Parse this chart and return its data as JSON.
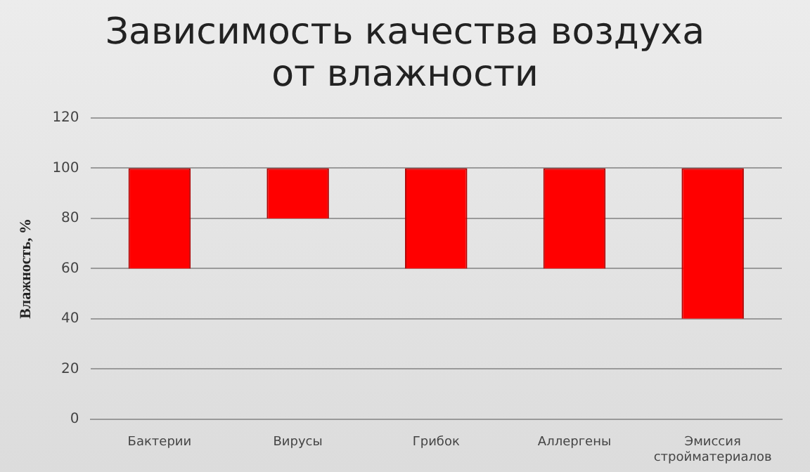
{
  "chart_data": {
    "type": "bar",
    "title": "Зависимость качества воздуха от влажности",
    "ylabel": "Влажность, %",
    "categories": [
      "Бактерии",
      "Вирусы",
      "Грибок",
      "Аллергены",
      "Эмиссия стройматериалов"
    ],
    "base": [
      60,
      80,
      60,
      60,
      40
    ],
    "values": [
      40,
      20,
      40,
      40,
      60
    ],
    "color": "#ff0000",
    "ylim": [
      0,
      120
    ],
    "yticks": [
      0,
      20,
      40,
      60,
      80,
      100,
      120
    ],
    "grid": "y"
  }
}
